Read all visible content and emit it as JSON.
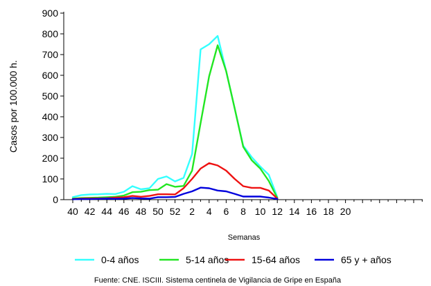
{
  "chart_data": {
    "type": "line",
    "ylabel": "Casos por 100.000 h.",
    "xlabel": "Semanas",
    "ylim": [
      0,
      900
    ],
    "y_ticks": [
      0,
      100,
      200,
      300,
      400,
      500,
      600,
      700,
      800,
      900
    ],
    "x_ticks": [
      "40",
      "42",
      "44",
      "46",
      "48",
      "50",
      "52",
      "2",
      "4",
      "6",
      "8",
      "10",
      "12",
      "14",
      "16",
      "18",
      "20"
    ],
    "x": [
      "40",
      "41",
      "42",
      "43",
      "44",
      "45",
      "46",
      "47",
      "48",
      "49",
      "50",
      "51",
      "52",
      "1",
      "2",
      "3",
      "4",
      "5",
      "6",
      "7",
      "8",
      "9",
      "10",
      "11",
      "12"
    ],
    "grid": false,
    "legend_position": "bottom",
    "series": [
      {
        "name": "0-4 años",
        "color": "#33FFFF",
        "values": [
          12,
          22,
          25,
          26,
          28,
          27,
          38,
          65,
          50,
          55,
          100,
          112,
          88,
          105,
          220,
          725,
          750,
          790,
          620,
          440,
          260,
          205,
          160,
          120,
          12
        ]
      },
      {
        "name": "5-14 años",
        "color": "#22E622",
        "values": [
          5,
          8,
          9,
          10,
          12,
          14,
          20,
          36,
          38,
          46,
          48,
          75,
          62,
          66,
          140,
          370,
          595,
          745,
          620,
          440,
          255,
          190,
          150,
          90,
          8
        ]
      },
      {
        "name": "15-64 años",
        "color": "#EE1111",
        "values": [
          3,
          5,
          6,
          6,
          7,
          10,
          12,
          18,
          14,
          18,
          26,
          26,
          25,
          55,
          100,
          150,
          176,
          165,
          140,
          100,
          65,
          57,
          57,
          44,
          5
        ]
      },
      {
        "name": "65 y + años",
        "color": "#0000DD",
        "values": [
          2,
          3,
          3,
          4,
          5,
          4,
          5,
          8,
          6,
          5,
          12,
          12,
          13,
          28,
          40,
          58,
          55,
          44,
          40,
          28,
          15,
          15,
          15,
          10,
          3
        ]
      }
    ],
    "source": "Fuente: CNE. ISCIII. Sistema centinela de Vigilancia de Gripe en España"
  }
}
